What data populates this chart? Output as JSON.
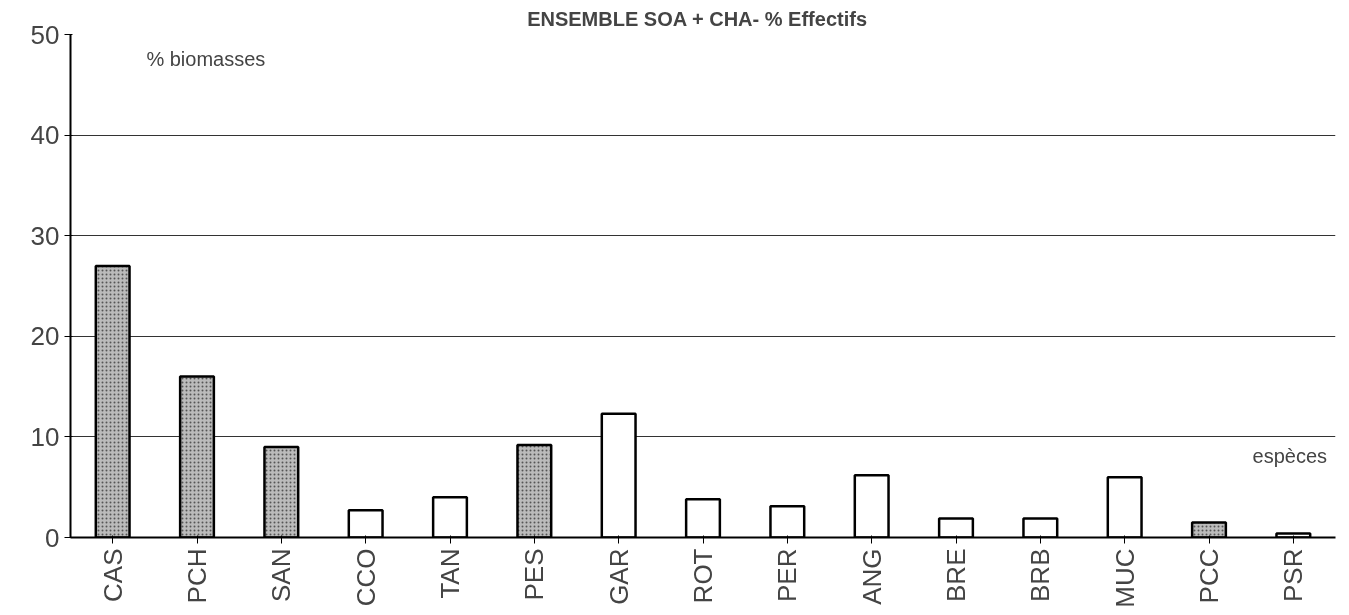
{
  "chart_data": {
    "type": "bar",
    "title": "ENSEMBLE SOA + CHA-   % Effectifs",
    "categories": [
      "CAS",
      "PCH",
      "SAN",
      "CCO",
      "TAN",
      "PES",
      "GAR",
      "ROT",
      "PER",
      "ANG",
      "BRE",
      "BRB",
      "MUC",
      "PCC",
      "PSR"
    ],
    "values": [
      27,
      16,
      9,
      2.7,
      4,
      9.2,
      12.3,
      3.8,
      3.1,
      6.2,
      1.9,
      1.9,
      6,
      1.5,
      0.4
    ],
    "colors": [
      "#bbbbbb",
      "#bbbbbb",
      "#bbbbbb",
      "#ffffff",
      "#ffffff",
      "#bbbbbb",
      "#ffffff",
      "#ffffff",
      "#ffffff",
      "#ffffff",
      "#ffffff",
      "#ffffff",
      "#ffffff",
      "#bbbbbb",
      "#ffffff"
    ],
    "ylim": [
      0,
      50
    ],
    "yticks": [
      0,
      10,
      20,
      30,
      40,
      50
    ],
    "grid": "y",
    "annotations": [
      "% biomasses",
      "espèces"
    ]
  }
}
